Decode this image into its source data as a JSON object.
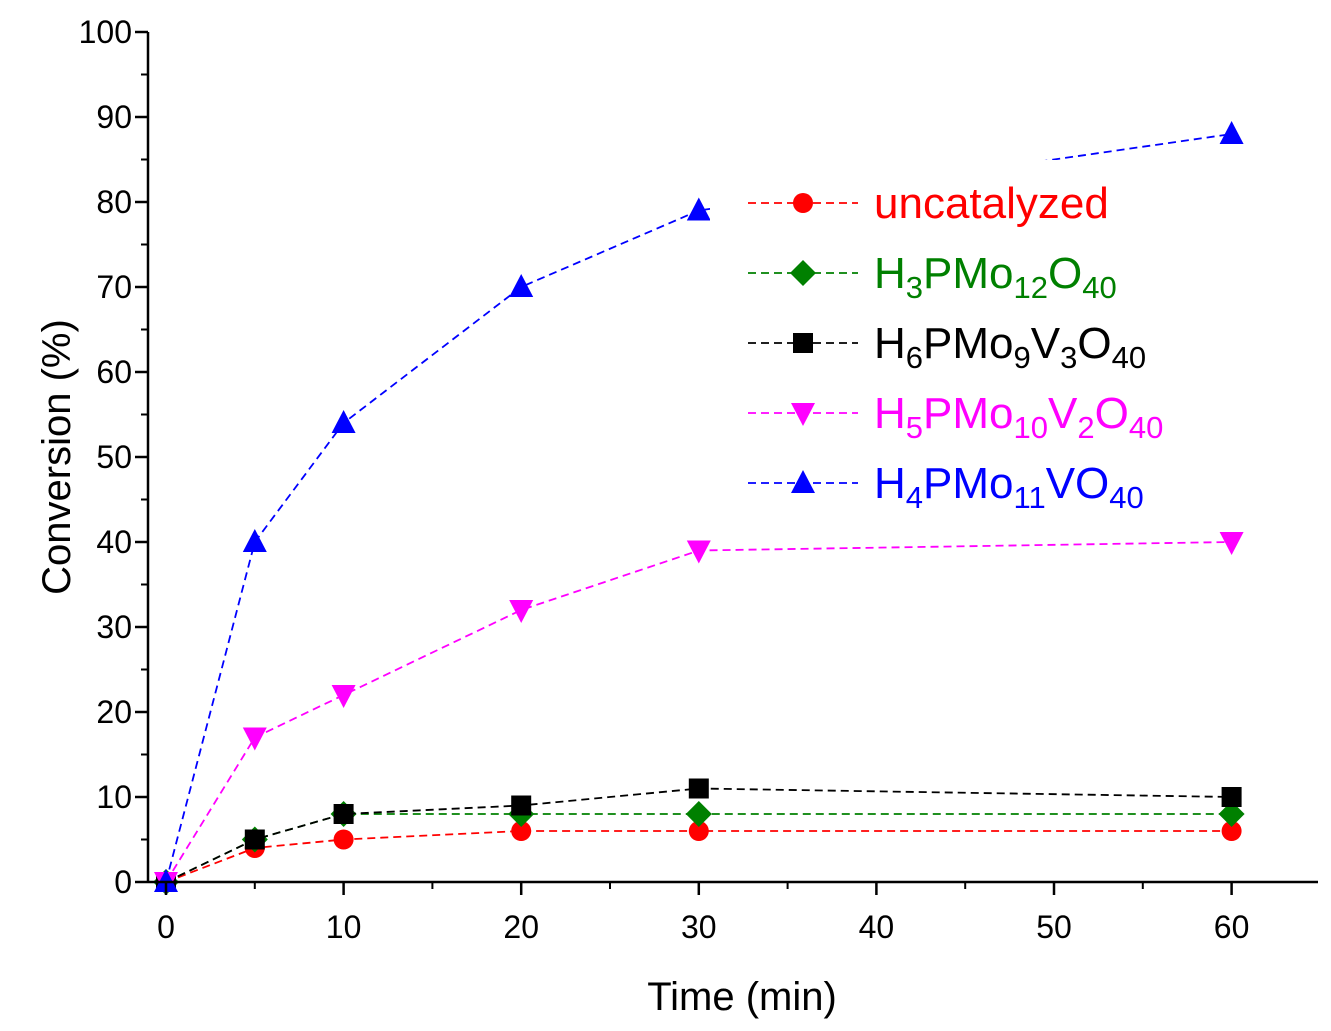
{
  "chart_data": {
    "type": "line",
    "title": "",
    "xlabel": "Time (min)",
    "ylabel": "Conversion (%)",
    "xlim": [
      -1,
      65
    ],
    "ylim": [
      0,
      100
    ],
    "xticks": [
      0,
      10,
      20,
      30,
      40,
      50,
      60
    ],
    "yticks": [
      0,
      10,
      20,
      30,
      40,
      50,
      60,
      70,
      80,
      90,
      100
    ],
    "legend_position": "upper-right",
    "grid": false,
    "line_style": "dashed",
    "x": [
      0,
      5,
      10,
      20,
      30,
      60
    ],
    "series": [
      {
        "name": "uncatalyzed",
        "legend_parts": [
          {
            "t": "uncatalyzed",
            "sub": false
          }
        ],
        "marker": "circle",
        "color": "#ff0000",
        "values": [
          0,
          4,
          5,
          6,
          6,
          6
        ]
      },
      {
        "name": "H3PMo12O40",
        "legend_parts": [
          {
            "t": "H",
            "sub": false
          },
          {
            "t": "3",
            "sub": true
          },
          {
            "t": "PMo",
            "sub": false
          },
          {
            "t": "12",
            "sub": true
          },
          {
            "t": "O",
            "sub": false
          },
          {
            "t": "40",
            "sub": true
          }
        ],
        "marker": "diamond",
        "color": "#008000",
        "values": [
          0,
          5,
          8,
          8,
          8,
          8
        ]
      },
      {
        "name": "H6PMo9V3O40",
        "legend_parts": [
          {
            "t": "H",
            "sub": false
          },
          {
            "t": "6",
            "sub": true
          },
          {
            "t": "PMo",
            "sub": false
          },
          {
            "t": "9",
            "sub": true
          },
          {
            "t": "V",
            "sub": false
          },
          {
            "t": "3",
            "sub": true
          },
          {
            "t": "O",
            "sub": false
          },
          {
            "t": "40",
            "sub": true
          }
        ],
        "marker": "square",
        "color": "#000000",
        "values": [
          0,
          5,
          8,
          9,
          11,
          10
        ]
      },
      {
        "name": "H5PMo10V2O40",
        "legend_parts": [
          {
            "t": "H",
            "sub": false
          },
          {
            "t": "5",
            "sub": true
          },
          {
            "t": "PMo",
            "sub": false
          },
          {
            "t": "10",
            "sub": true
          },
          {
            "t": "V",
            "sub": false
          },
          {
            "t": "2",
            "sub": true
          },
          {
            "t": "O",
            "sub": false
          },
          {
            "t": "40",
            "sub": true
          }
        ],
        "marker": "triangle-down",
        "color": "#ff00ff",
        "values": [
          0,
          17,
          22,
          32,
          39,
          40
        ]
      },
      {
        "name": "H4PMo11VO40",
        "legend_parts": [
          {
            "t": "H",
            "sub": false
          },
          {
            "t": "4",
            "sub": true
          },
          {
            "t": "PMo",
            "sub": false
          },
          {
            "t": "11",
            "sub": true
          },
          {
            "t": "VO",
            "sub": false
          },
          {
            "t": "40",
            "sub": true
          }
        ],
        "marker": "triangle-up",
        "color": "#0000ff",
        "values": [
          0,
          40,
          54,
          70,
          79,
          88
        ]
      }
    ]
  }
}
